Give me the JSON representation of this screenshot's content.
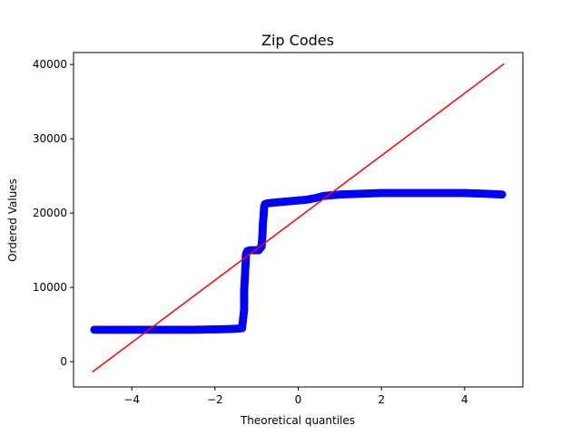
{
  "chart_data": {
    "type": "scatter",
    "title": "Zip Codes",
    "xlabel": "Theoretical quantiles",
    "ylabel": "Ordered Values",
    "xlim": [
      -5.4,
      5.4
    ],
    "ylim": [
      -3400,
      41600
    ],
    "x_ticks": [
      -4,
      -2,
      0,
      2,
      4
    ],
    "y_ticks": [
      0,
      10000,
      20000,
      30000,
      40000
    ],
    "x_tick_labels": [
      "−4",
      "−2",
      "0",
      "2",
      "4"
    ],
    "y_tick_labels": [
      "0",
      "10000",
      "20000",
      "30000",
      "40000"
    ],
    "grid": false,
    "legend": "none",
    "points_color": "#0000ff",
    "line_color": "#ff0000",
    "series": [
      {
        "kind": "ordered-values",
        "x": [
          -4.9,
          -4.7,
          -4.4,
          -4.0,
          -3.5,
          -3.0,
          -2.5,
          -2.0,
          -1.6,
          -1.35,
          -1.3,
          -1.3,
          -1.28,
          -1.27,
          -1.26,
          -1.26,
          -1.25,
          -1.24,
          -1.22,
          -1.15,
          -1.05,
          -0.95,
          -0.88,
          -0.86,
          -0.85,
          -0.83,
          -0.82,
          -0.8,
          -0.75,
          -0.6,
          -0.4,
          -0.2,
          0.0,
          0.2,
          0.4,
          0.6,
          1.0,
          1.5,
          2.0,
          2.5,
          3.0,
          3.5,
          4.0,
          4.5,
          4.9
        ],
        "y": [
          4300,
          4300,
          4300,
          4300,
          4300,
          4300,
          4300,
          4350,
          4400,
          4500,
          7000,
          9500,
          11500,
          12700,
          13500,
          14200,
          14500,
          14700,
          14900,
          15000,
          15000,
          15000,
          15500,
          17000,
          18500,
          19800,
          20800,
          21200,
          21300,
          21400,
          21500,
          21600,
          21700,
          21800,
          22000,
          22300,
          22500,
          22600,
          22700,
          22700,
          22700,
          22700,
          22700,
          22600,
          22500
        ]
      },
      {
        "kind": "fit-line",
        "x": [
          -4.95,
          4.95
        ],
        "y": [
          -1400,
          40100
        ]
      }
    ]
  }
}
